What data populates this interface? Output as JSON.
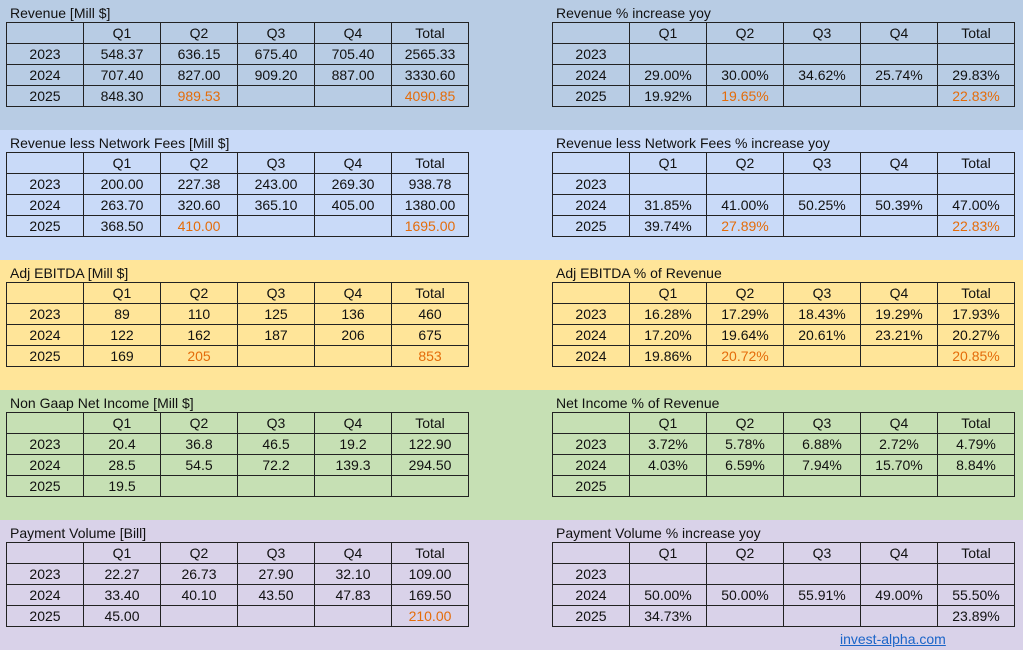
{
  "colors": {
    "highlight": "#e46c0a",
    "link": "#1a64c8"
  },
  "columns": [
    "",
    "Q1",
    "Q2",
    "Q3",
    "Q4",
    "Total"
  ],
  "sections": [
    {
      "background": "#b8cce4",
      "left": {
        "title": "Revenue [Mill $]",
        "rows": [
          [
            "2023",
            "548.37",
            "636.15",
            "675.40",
            "705.40",
            "2565.33"
          ],
          [
            "2024",
            "707.40",
            "827.00",
            "909.20",
            "887.00",
            "3330.60"
          ],
          [
            "2025",
            "848.30",
            "989.53",
            "",
            "",
            "4090.85"
          ]
        ],
        "highlight": [
          [
            2,
            2
          ],
          [
            2,
            5
          ]
        ]
      },
      "right": {
        "title": "Revenue % increase yoy",
        "rows": [
          [
            "2023",
            "",
            "",
            "",
            "",
            ""
          ],
          [
            "2024",
            "29.00%",
            "30.00%",
            "34.62%",
            "25.74%",
            "29.83%"
          ],
          [
            "2025",
            "19.92%",
            "19.65%",
            "",
            "",
            "22.83%"
          ]
        ],
        "highlight": [
          [
            2,
            2
          ],
          [
            2,
            5
          ]
        ]
      }
    },
    {
      "background": "#c9daf8",
      "left": {
        "title": "Revenue less Network Fees [Mill $]",
        "rows": [
          [
            "2023",
            "200.00",
            "227.38",
            "243.00",
            "269.30",
            "938.78"
          ],
          [
            "2024",
            "263.70",
            "320.60",
            "365.10",
            "405.00",
            "1380.00"
          ],
          [
            "2025",
            "368.50",
            "410.00",
            "",
            "",
            "1695.00"
          ]
        ],
        "highlight": [
          [
            2,
            2
          ],
          [
            2,
            5
          ]
        ]
      },
      "right": {
        "title": "Revenue less Network Fees % increase yoy",
        "rows": [
          [
            "2023",
            "",
            "",
            "",
            "",
            ""
          ],
          [
            "2024",
            "31.85%",
            "41.00%",
            "50.25%",
            "50.39%",
            "47.00%"
          ],
          [
            "2025",
            "39.74%",
            "27.89%",
            "",
            "",
            "22.83%"
          ]
        ],
        "highlight": [
          [
            2,
            2
          ],
          [
            2,
            5
          ]
        ]
      }
    },
    {
      "background": "#ffe599",
      "left": {
        "title": "Adj EBITDA [Mill $]",
        "rows": [
          [
            "2023",
            "89",
            "110",
            "125",
            "136",
            "460"
          ],
          [
            "2024",
            "122",
            "162",
            "187",
            "206",
            "675"
          ],
          [
            "2025",
            "169",
            "205",
            "",
            "",
            "853"
          ]
        ],
        "highlight": [
          [
            2,
            2
          ],
          [
            2,
            5
          ]
        ]
      },
      "right": {
        "title": "Adj EBITDA % of Revenue",
        "rows": [
          [
            "2023",
            "16.28%",
            "17.29%",
            "18.43%",
            "19.29%",
            "17.93%"
          ],
          [
            "2024",
            "17.20%",
            "19.64%",
            "20.61%",
            "23.21%",
            "20.27%"
          ],
          [
            "2024",
            "19.86%",
            "20.72%",
            "",
            "",
            "20.85%"
          ]
        ],
        "highlight": [
          [
            2,
            2
          ],
          [
            2,
            5
          ]
        ]
      }
    },
    {
      "background": "#c6e0b4",
      "left": {
        "title": "Non Gaap Net Income [Mill $]",
        "rows": [
          [
            "2023",
            "20.4",
            "36.8",
            "46.5",
            "19.2",
            "122.90"
          ],
          [
            "2024",
            "28.5",
            "54.5",
            "72.2",
            "139.3",
            "294.50"
          ],
          [
            "2025",
            "19.5",
            "",
            "",
            "",
            ""
          ]
        ],
        "highlight": []
      },
      "right": {
        "title": "Net Income % of Revenue",
        "rows": [
          [
            "2023",
            "3.72%",
            "5.78%",
            "6.88%",
            "2.72%",
            "4.79%"
          ],
          [
            "2024",
            "4.03%",
            "6.59%",
            "7.94%",
            "15.70%",
            "8.84%"
          ],
          [
            "2025",
            "",
            "",
            "",
            "",
            ""
          ]
        ],
        "highlight": []
      }
    },
    {
      "background": "#d9d2e9",
      "left": {
        "title": "Payment Volume [Bill]",
        "rows": [
          [
            "2023",
            "22.27",
            "26.73",
            "27.90",
            "32.10",
            "109.00"
          ],
          [
            "2024",
            "33.40",
            "40.10",
            "43.50",
            "47.83",
            "169.50"
          ],
          [
            "2025",
            "45.00",
            "",
            "",
            "",
            "210.00"
          ]
        ],
        "highlight": [
          [
            2,
            5
          ]
        ]
      },
      "right": {
        "title": "Payment Volume % increase yoy",
        "rows": [
          [
            "2023",
            "",
            "",
            "",
            "",
            ""
          ],
          [
            "2024",
            "50.00%",
            "50.00%",
            "55.91%",
            "49.00%",
            "55.50%"
          ],
          [
            "2025",
            "34.73%",
            "",
            "",
            "",
            "23.89%"
          ]
        ],
        "highlight": []
      }
    }
  ],
  "footer": {
    "link": "invest-alpha.com"
  }
}
